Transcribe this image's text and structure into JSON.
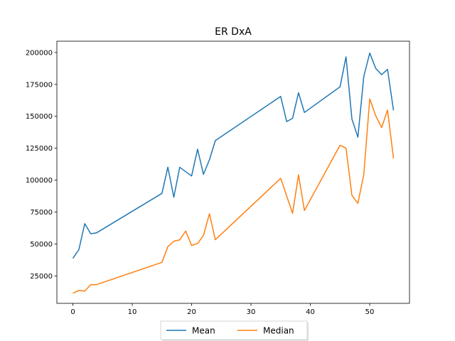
{
  "chart_data": {
    "type": "line",
    "title": "ER DxA",
    "xlabel": "",
    "ylabel": "",
    "xlim": [
      -2.7,
      56.7
    ],
    "ylim": [
      3600,
      208800
    ],
    "xticks": [
      0,
      10,
      20,
      30,
      40,
      50
    ],
    "yticks": [
      25000,
      50000,
      75000,
      100000,
      125000,
      150000,
      175000,
      200000
    ],
    "grid": false,
    "legend_placement": "bottom-center",
    "series": [
      {
        "name": "Mean",
        "color": "#1f77b4",
        "x": [
          0,
          1,
          2,
          3,
          4,
          15,
          16,
          17,
          18,
          20,
          21,
          22,
          23,
          24,
          35,
          36,
          37,
          38,
          39,
          45,
          46,
          47,
          48,
          49,
          50,
          51,
          52,
          53,
          54
        ],
        "values": [
          38800,
          45600,
          66000,
          58100,
          58800,
          89700,
          110200,
          86700,
          110100,
          103300,
          124300,
          104600,
          116000,
          131000,
          165600,
          145900,
          148400,
          168500,
          153000,
          173100,
          196500,
          147900,
          133600,
          181300,
          199500,
          187600,
          182600,
          186700,
          154700
        ]
      },
      {
        "name": "Median",
        "color": "#ff7f0e",
        "x": [
          0,
          1,
          2,
          3,
          4,
          15,
          16,
          17,
          18,
          19,
          20,
          21,
          22,
          23,
          24,
          35,
          37,
          38,
          39,
          45,
          46,
          47,
          48,
          49,
          50,
          51,
          52,
          53,
          54
        ],
        "values": [
          11500,
          13700,
          13200,
          18200,
          18300,
          35700,
          48000,
          52200,
          53300,
          60200,
          48900,
          50400,
          56800,
          73800,
          53400,
          101500,
          74100,
          104200,
          76300,
          127400,
          125000,
          88100,
          81900,
          104500,
          163700,
          150500,
          141200,
          154900,
          117100
        ]
      }
    ]
  }
}
